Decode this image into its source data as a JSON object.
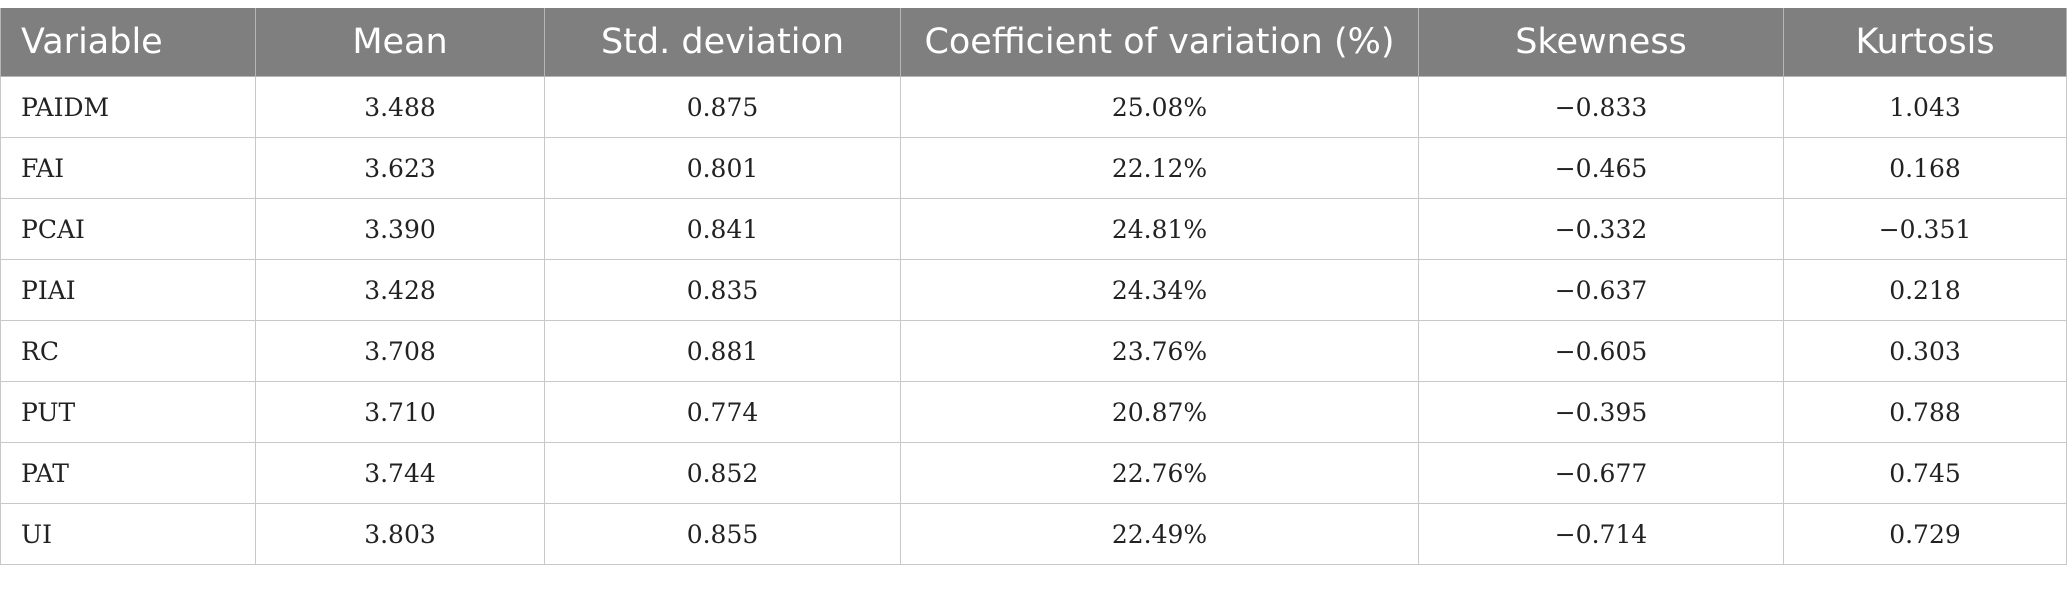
{
  "table": {
    "headers": [
      "Variable",
      "Mean",
      "Std. deviation",
      "Coefficient of variation (%)",
      "Skewness",
      "Kurtosis"
    ],
    "rows": [
      [
        "PAIDM",
        "3.488",
        "0.875",
        "25.08%",
        "−0.833",
        "1.043"
      ],
      [
        "FAI",
        "3.623",
        "0.801",
        "22.12%",
        "−0.465",
        "0.168"
      ],
      [
        "PCAI",
        "3.390",
        "0.841",
        "24.81%",
        "−0.332",
        "−0.351"
      ],
      [
        "PIAI",
        "3.428",
        "0.835",
        "24.34%",
        "−0.637",
        "0.218"
      ],
      [
        "RC",
        "3.708",
        "0.881",
        "23.76%",
        "−0.605",
        "0.303"
      ],
      [
        "PUT",
        "3.710",
        "0.774",
        "20.87%",
        "−0.395",
        "0.788"
      ],
      [
        "PAT",
        "3.744",
        "0.852",
        "22.76%",
        "−0.677",
        "0.745"
      ],
      [
        "UI",
        "3.803",
        "0.855",
        "22.49%",
        "−0.714",
        "0.729"
      ]
    ]
  },
  "colors": {
    "header_background": "#7f7f7f",
    "header_text": "#ffffff",
    "grid_lines": "#c8c8c8"
  }
}
